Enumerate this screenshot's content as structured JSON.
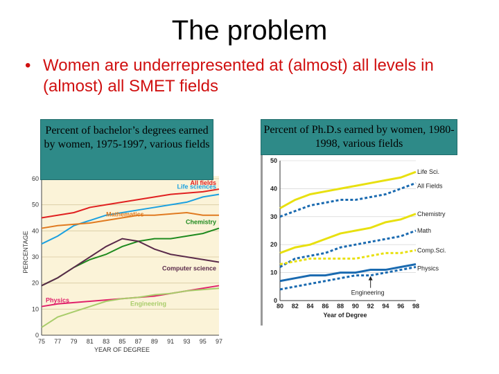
{
  "slide": {
    "title": "The problem",
    "bullet_marker": "•",
    "bullet_text": "Women are underrepresented at (almost) all levels in (almost) all SMET fields"
  },
  "chart_data": [
    {
      "type": "line",
      "title": "Percent of bachelor’s degrees earned by women, 1975-1997, various fields",
      "xlabel": "YEAR OF DEGREE",
      "ylabel": "PERCENTAGE",
      "xlim": [
        75,
        97
      ],
      "ylim": [
        0,
        60
      ],
      "x_ticks": [
        "75",
        "77",
        "79",
        "81",
        "83",
        "85",
        "87",
        "89",
        "91",
        "93",
        "95",
        "97"
      ],
      "y_ticks": [
        "0",
        "10",
        "20",
        "30",
        "40",
        "50",
        "60"
      ],
      "colors": {
        "all": "#e02020",
        "life": "#1aa0e0",
        "math": "#e07a20",
        "chem": "#1e8a1e",
        "cs": "#5a2a4a",
        "phys": "#e0206a",
        "eng": "#a8cc6a"
      },
      "series": [
        {
          "key": "all",
          "name": "All fields",
          "x": [
            75,
            77,
            79,
            81,
            83,
            85,
            87,
            89,
            91,
            93,
            95,
            97
          ],
          "values": [
            45,
            46,
            47,
            49,
            50,
            51,
            52,
            53,
            54,
            54.5,
            55,
            56
          ]
        },
        {
          "key": "life",
          "name": "Life sciences",
          "x": [
            75,
            77,
            79,
            81,
            83,
            85,
            87,
            89,
            91,
            93,
            95,
            97
          ],
          "values": [
            35,
            38,
            42,
            44,
            46,
            47,
            48,
            49,
            50,
            51,
            53,
            54
          ]
        },
        {
          "key": "math",
          "name": "Mathematics",
          "x": [
            75,
            77,
            79,
            81,
            83,
            85,
            87,
            89,
            91,
            93,
            95,
            97
          ],
          "values": [
            41,
            42,
            42.5,
            43,
            44,
            45,
            46,
            46,
            46.5,
            47,
            46,
            46
          ]
        },
        {
          "key": "chem",
          "name": "Chemistry",
          "x": [
            75,
            77,
            79,
            81,
            83,
            85,
            87,
            89,
            91,
            93,
            95,
            97
          ],
          "values": [
            19,
            22,
            26,
            29,
            31,
            34,
            36,
            37,
            37,
            38,
            39,
            41
          ]
        },
        {
          "key": "cs",
          "name": "Computer science",
          "x": [
            75,
            77,
            79,
            81,
            83,
            85,
            87,
            89,
            91,
            93,
            95,
            97
          ],
          "values": [
            19,
            22,
            26,
            30,
            34,
            37,
            36,
            33,
            31,
            30,
            29,
            28
          ]
        },
        {
          "key": "phys",
          "name": "Physics",
          "x": [
            75,
            77,
            79,
            81,
            83,
            85,
            87,
            89,
            91,
            93,
            95,
            97
          ],
          "values": [
            11,
            12,
            12.5,
            13,
            13.5,
            14,
            14.5,
            15,
            16,
            17,
            18,
            19
          ]
        },
        {
          "key": "eng",
          "name": "Engineering",
          "x": [
            75,
            77,
            79,
            81,
            83,
            85,
            87,
            89,
            91,
            93,
            95,
            97
          ],
          "values": [
            3,
            7,
            9,
            11,
            13,
            14,
            14.5,
            15.5,
            16,
            17,
            17.5,
            18
          ]
        }
      ]
    },
    {
      "type": "line",
      "title": "Percent of Ph.D.s earned by women, 1980-1998, various fields",
      "xlabel": "Year of Degree",
      "xlim": [
        80,
        98
      ],
      "ylim": [
        0,
        50
      ],
      "x_ticks": [
        "80",
        "82",
        "84",
        "86",
        "88",
        "90",
        "92",
        "94",
        "96",
        "98"
      ],
      "y_ticks": [
        "0",
        "10",
        "20",
        "30",
        "40",
        "50"
      ],
      "annotation": "Engineering",
      "colors": {
        "life": "#e8e010",
        "all": "#1a6ab0",
        "chem": "#e8e010",
        "math": "#1a6ab0",
        "cs": "#e8e010",
        "phys": "#1a6ab0",
        "eng": "#1a6ab0"
      },
      "series": [
        {
          "key": "life",
          "name": "Life Sci.",
          "dash": false,
          "x": [
            80,
            82,
            84,
            86,
            88,
            90,
            92,
            94,
            96,
            98
          ],
          "values": [
            33,
            36,
            38,
            39,
            40,
            41,
            42,
            43,
            44,
            46
          ]
        },
        {
          "key": "all",
          "name": "All Fields",
          "dash": true,
          "x": [
            80,
            82,
            84,
            86,
            88,
            90,
            92,
            94,
            96,
            98
          ],
          "values": [
            30,
            32,
            34,
            35,
            36,
            36,
            37,
            38,
            40,
            42
          ]
        },
        {
          "key": "chem",
          "name": "Chemistry",
          "dash": false,
          "x": [
            80,
            82,
            84,
            86,
            88,
            90,
            92,
            94,
            96,
            98
          ],
          "values": [
            17,
            19,
            20,
            22,
            24,
            25,
            26,
            28,
            29,
            31
          ]
        },
        {
          "key": "math",
          "name": "Math",
          "dash": true,
          "x": [
            80,
            82,
            84,
            86,
            88,
            90,
            92,
            94,
            96,
            98
          ],
          "values": [
            12,
            15,
            16,
            17,
            19,
            20,
            21,
            22,
            23,
            25
          ]
        },
        {
          "key": "cs",
          "name": "Comp.Sci.",
          "dash": true,
          "x": [
            80,
            82,
            84,
            86,
            88,
            90,
            92,
            94,
            96,
            98
          ],
          "values": [
            13,
            14,
            15,
            15,
            15,
            15,
            16,
            17,
            17,
            18
          ]
        },
        {
          "key": "phys",
          "name": "Physics",
          "dash": false,
          "x": [
            80,
            82,
            84,
            86,
            88,
            90,
            92,
            94,
            96,
            98
          ],
          "values": [
            7,
            8,
            9,
            9,
            10,
            10,
            11,
            11,
            12,
            13
          ]
        },
        {
          "key": "eng",
          "name": "Engineering",
          "dash": true,
          "x": [
            80,
            82,
            84,
            86,
            88,
            90,
            92,
            94,
            96,
            98
          ],
          "values": [
            4,
            5,
            6,
            7,
            8,
            9,
            9,
            10,
            11,
            12
          ]
        }
      ]
    }
  ]
}
